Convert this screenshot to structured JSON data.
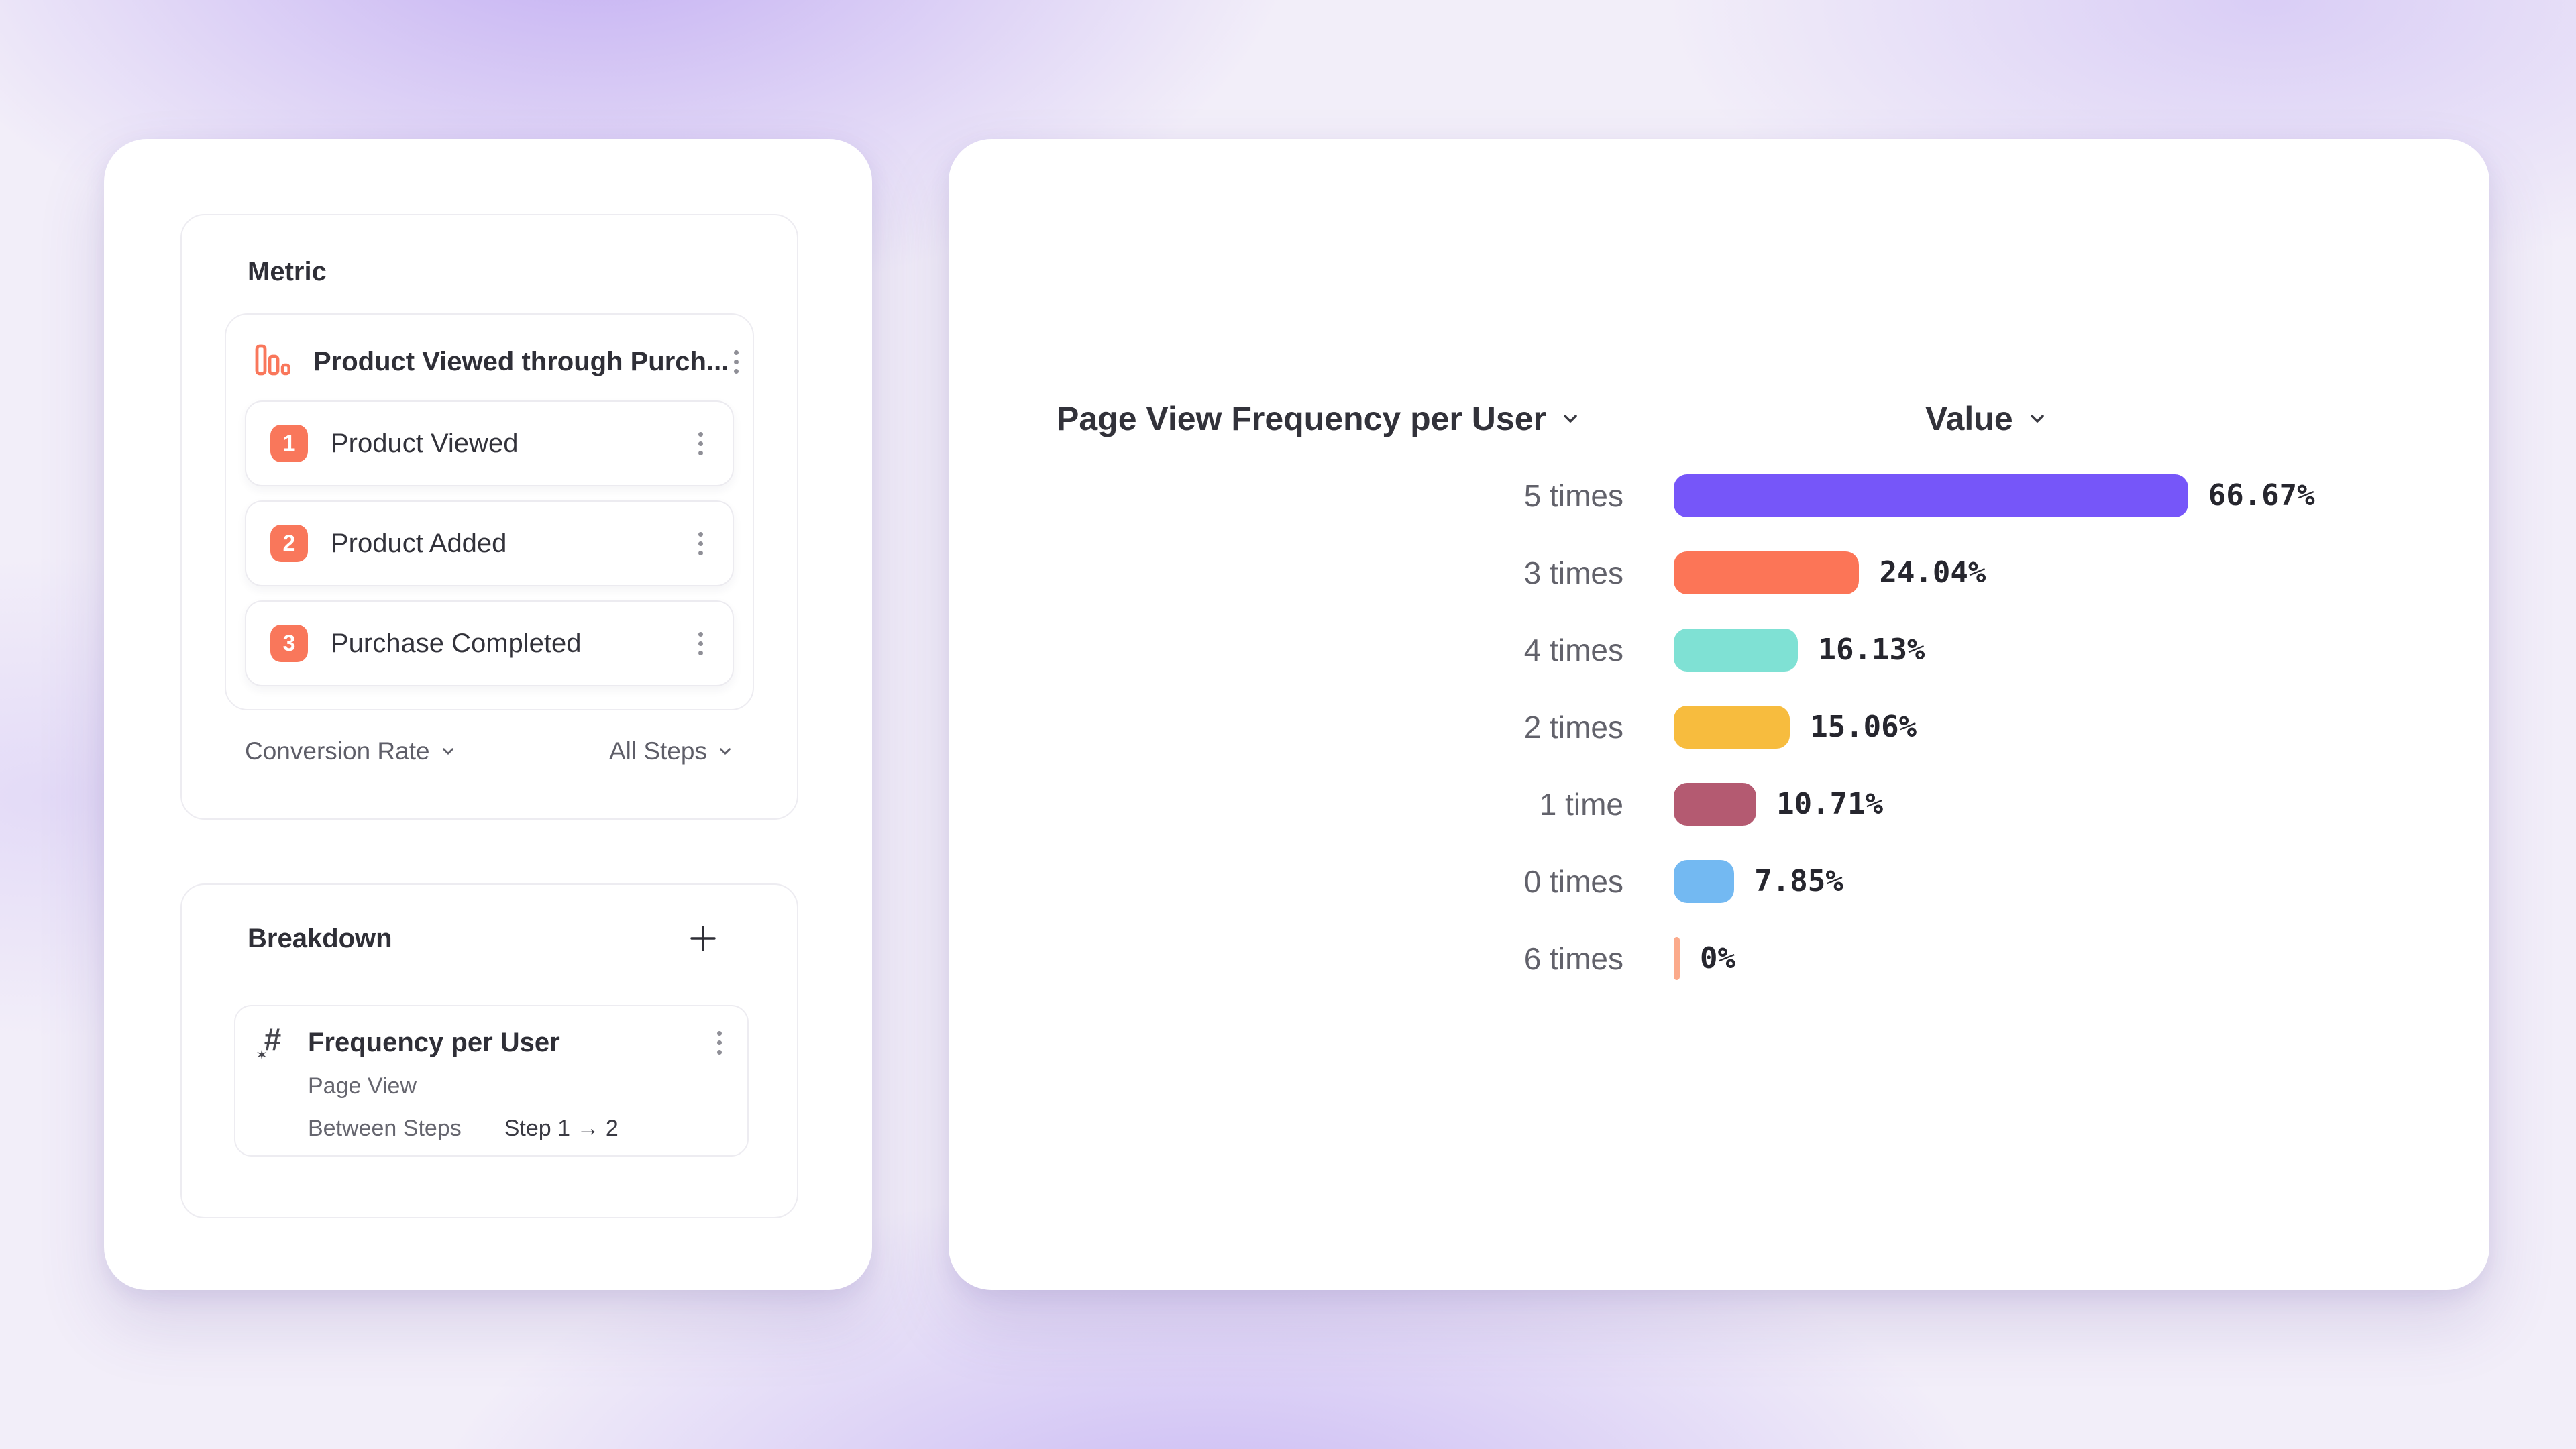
{
  "colors": {
    "accent_coral": "#F9775B",
    "background_purple": "#9A76EC",
    "card_background": "#FFFFFF",
    "label_gray": "#62626B",
    "text_dark": "#2F2F37"
  },
  "metric_panel": {
    "title": "Metric",
    "funnel": {
      "title": "Product Viewed through Purch...",
      "icon": "funnel-bars-icon",
      "steps": [
        {
          "number": "1",
          "label": "Product Viewed"
        },
        {
          "number": "2",
          "label": "Product Added"
        },
        {
          "number": "3",
          "label": "Purchase Completed"
        }
      ]
    },
    "footer": {
      "measurement": "Conversion Rate",
      "scope": "All Steps"
    }
  },
  "breakdown_panel": {
    "title": "Breakdown",
    "add_icon": "plus-icon",
    "item": {
      "icon": "numeric-property-icon",
      "title": "Frequency per User",
      "event": "Page View",
      "between_label": "Between Steps",
      "between_value": "Step 1 → 2"
    }
  },
  "chart_header": {
    "series": "Page View Frequency per User",
    "value": "Value"
  },
  "chart_data": {
    "type": "bar",
    "orientation": "horizontal",
    "title": "Page View Frequency per User",
    "value_column": "Value",
    "unit": "%",
    "categories": [
      "5 times",
      "3 times",
      "4 times",
      "2 times",
      "1 time",
      "0 times",
      "6 times"
    ],
    "values": [
      66.67,
      24.04,
      16.13,
      15.06,
      10.71,
      7.85,
      0
    ],
    "value_labels": [
      "66.67%",
      "24.04%",
      "16.13%",
      "15.06%",
      "10.71%",
      "7.85%",
      "0%"
    ],
    "bar_colors": [
      "#7656F9",
      "#FC7557",
      "#7FE1D4",
      "#F7BC3E",
      "#B45A71",
      "#73B9F2",
      "#FBAA8B"
    ],
    "xlim": [
      0,
      100
    ],
    "grid": false,
    "legend": false
  }
}
